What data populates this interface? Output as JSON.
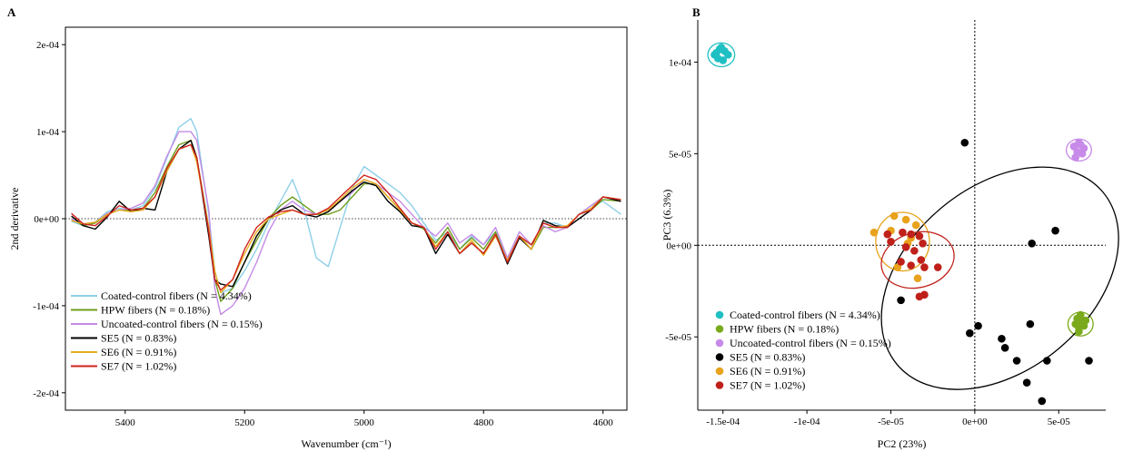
{
  "chart_data": [
    {
      "panel_label": "A",
      "type": "line",
      "xlabel": "Wavenumber (cm⁻¹)",
      "ylabel": "2nd derivative",
      "xlim": [
        5500,
        4560
      ],
      "ylim": [
        -0.00022,
        0.00022
      ],
      "x_reversed": true,
      "x_ticks": [
        5400,
        5200,
        5000,
        4800,
        4600
      ],
      "x_tick_labels": [
        "5400",
        "5200",
        "5000",
        "4800",
        "4600"
      ],
      "y_ticks": [
        -0.0002,
        -0.0001,
        0,
        0.0001,
        0.0002
      ],
      "y_tick_labels": [
        "-2e-04",
        "-1e-04",
        "0e+00",
        "1e-04",
        "2e-04"
      ],
      "zero_line": "dotted",
      "legend_position": "bottom-left",
      "x": [
        5490,
        5470,
        5450,
        5430,
        5410,
        5390,
        5370,
        5350,
        5330,
        5310,
        5290,
        5280,
        5260,
        5250,
        5240,
        5220,
        5200,
        5180,
        5160,
        5140,
        5120,
        5100,
        5080,
        5060,
        5040,
        5020,
        5000,
        4980,
        4960,
        4940,
        4920,
        4900,
        4880,
        4860,
        4840,
        4820,
        4800,
        4780,
        4760,
        4740,
        4720,
        4700,
        4680,
        4660,
        4640,
        4620,
        4600,
        4570
      ],
      "series": [
        {
          "name": "Coated-control fibers (N = 4.34%)",
          "color": "#8ecfe8",
          "values": [
            -3e-06,
            -8e-06,
            -4e-06,
            8e-06,
            1.2e-05,
            1e-05,
            1.5e-05,
            3.5e-05,
            7e-05,
            0.000105,
            0.000115,
            0.0001,
            5e-06,
            -6e-05,
            -8.5e-05,
            -8e-05,
            -6e-05,
            -3.5e-05,
            -5e-06,
            2e-05,
            4.5e-05,
            1e-05,
            -4.5e-05,
            -5.5e-05,
            -1e-05,
            3.5e-05,
            6e-05,
            5e-05,
            4e-05,
            3e-05,
            1.5e-05,
            -5e-06,
            -2.5e-05,
            -1.5e-05,
            -3.5e-05,
            -2e-05,
            -3e-05,
            -1.5e-05,
            -4.5e-05,
            -2e-05,
            -3e-05,
            -5e-06,
            -5e-06,
            -1e-05,
            5e-06,
            1.5e-05,
            2e-05,
            5e-06
          ]
        },
        {
          "name": "HPW fibers (N = 0.18%)",
          "color": "#6f9e1e",
          "values": [
            0,
            -8e-06,
            -5e-06,
            5e-06,
            1e-05,
            1e-05,
            1.2e-05,
            3e-05,
            6e-05,
            8.5e-05,
            9e-05,
            7e-05,
            -1e-05,
            -7e-05,
            -9.5e-05,
            -8e-05,
            -5e-05,
            -2.5e-05,
            0,
            1.5e-05,
            2.5e-05,
            1.5e-05,
            5e-06,
            5e-06,
            1e-05,
            2.5e-05,
            4e-05,
            4e-05,
            2.5e-05,
            1e-05,
            -5e-06,
            -1.2e-05,
            -2.8e-05,
            -1e-05,
            -3.5e-05,
            -2.2e-05,
            -3.5e-05,
            -1.5e-05,
            -5e-05,
            -2e-05,
            -3.5e-05,
            -1e-05,
            -1e-05,
            -1e-05,
            5e-06,
            1e-05,
            2.2e-05,
            2e-05
          ]
        },
        {
          "name": "Uncoated-control fibers (N = 0.15%)",
          "color": "#c58be6",
          "values": [
            0,
            -6e-06,
            -4e-06,
            6e-06,
            1e-05,
            1.2e-05,
            1.8e-05,
            3.8e-05,
            7.2e-05,
            0.0001,
            0.0001,
            9e-05,
            1e-05,
            -8e-05,
            -0.00011,
            -0.0001,
            -8e-05,
            -5e-05,
            -1.5e-05,
            1e-05,
            2e-05,
            1e-05,
            5e-06,
            1e-05,
            2e-05,
            3e-05,
            4.5e-05,
            4e-05,
            3e-05,
            2e-05,
            5e-06,
            -1e-05,
            -2e-05,
            -5e-06,
            -2.8e-05,
            -1.8e-05,
            -3e-05,
            -1e-05,
            -4.5e-05,
            -1.5e-05,
            -3e-05,
            -8e-06,
            -1.5e-05,
            -1e-05,
            5e-06,
            1.5e-05,
            2.5e-05,
            2e-05
          ]
        },
        {
          "name": "SE5 (N = 0.83%)",
          "color": "#000000",
          "values": [
            3e-06,
            -8e-06,
            -1.2e-05,
            2e-06,
            2e-05,
            8e-06,
            1.2e-05,
            1e-05,
            5.5e-05,
            8e-05,
            9e-05,
            7e-05,
            -2e-05,
            -7e-05,
            -7.5e-05,
            -7.8e-05,
            -5e-05,
            -2e-05,
            0,
            1e-05,
            1.5e-05,
            5e-06,
            2e-06,
            8e-06,
            2e-05,
            3.2e-05,
            4.2e-05,
            3.8e-05,
            2e-05,
            8e-06,
            -8e-06,
            -1e-05,
            -4e-05,
            -1.8e-05,
            -4e-05,
            -2.8e-05,
            -4e-05,
            -1.8e-05,
            -5.2e-05,
            -2.2e-05,
            -3.5e-05,
            -2e-06,
            -8e-06,
            -1e-05,
            0,
            1e-05,
            2.5e-05,
            2e-05
          ]
        },
        {
          "name": "SE6 (N = 0.91%)",
          "color": "#e6ad1e",
          "values": [
            -2e-06,
            -6e-06,
            -4e-06,
            5e-06,
            1e-05,
            8e-06,
            1e-05,
            2.5e-05,
            5.5e-05,
            8e-05,
            8.5e-05,
            6.5e-05,
            -1e-05,
            -6e-05,
            -8.5e-05,
            -7e-05,
            -4e-05,
            -1.5e-05,
            0,
            5e-06,
            1e-05,
            5e-06,
            5e-06,
            1e-05,
            2.2e-05,
            3.5e-05,
            4.5e-05,
            4e-05,
            2.5e-05,
            1e-05,
            -5e-06,
            -1e-05,
            -3.2e-05,
            -1.5e-05,
            -4e-05,
            -2.5e-05,
            -4.2e-05,
            -2e-05,
            -4.8e-05,
            -2e-05,
            -3.5e-05,
            -5e-06,
            -1e-05,
            -8e-06,
            5e-06,
            1.2e-05,
            2.5e-05,
            2.2e-05
          ]
        },
        {
          "name": "SE7 (N = 1.02%)",
          "color": "#d0231e",
          "values": [
            6e-06,
            -6e-06,
            -8e-06,
            3e-06,
            1.5e-05,
            1e-05,
            1.2e-05,
            2.5e-05,
            5.8e-05,
            8e-05,
            8.5e-05,
            7e-05,
            -1.5e-05,
            -7e-05,
            -8.2e-05,
            -7e-05,
            -3.5e-05,
            -1e-05,
            2e-06,
            8e-06,
            1e-05,
            5e-06,
            5e-06,
            1.2e-05,
            2.5e-05,
            3.8e-05,
            5e-05,
            4.5e-05,
            3e-05,
            1.2e-05,
            -5e-06,
            -1e-05,
            -3.5e-05,
            -1.5e-05,
            -4e-05,
            -2.8e-05,
            -4e-05,
            -1.8e-05,
            -5e-05,
            -2e-05,
            -3e-05,
            -5e-06,
            -1e-05,
            -1e-05,
            5e-06,
            1e-05,
            2.5e-05,
            2.2e-05
          ]
        }
      ]
    },
    {
      "panel_label": "B",
      "type": "scatter",
      "xlabel": "PC2 (23%)",
      "ylabel": "PC3 (6.3%)",
      "xlim": [
        -0.000165,
        7.8e-05
      ],
      "ylim": [
        -9e-05,
        0.000123
      ],
      "x_ticks": [
        -0.00015,
        -0.0001,
        -5e-05,
        0,
        5e-05
      ],
      "x_tick_labels": [
        "-1.5e-04",
        "-1e-04",
        "-5e-05",
        "0e+00",
        "5e-05"
      ],
      "y_ticks": [
        -5e-05,
        0,
        5e-05,
        0.0001
      ],
      "y_tick_labels": [
        "-5e-05",
        "0e+00",
        "5e-05",
        "1e-04"
      ],
      "zero_lines": "dashed",
      "legend_position": "bottom-left",
      "series": [
        {
          "name": "Coated-control fibers (N = 4.34%)",
          "color": "#1fbfc3",
          "x": [
            -0.000155,
            -0.000152,
            -0.000149,
            -0.000153,
            -0.00015,
            -0.000147,
            -0.000154,
            -0.000151
          ],
          "y": [
            0.000104,
            0.000107,
            0.000106,
            0.000102,
            0.000101,
            0.000104,
            0.000105,
            0.000108
          ],
          "ellipse": {
            "cx": -0.000151,
            "cy": 0.000104,
            "rx": 8e-06,
            "ry": 6.5e-06,
            "angle": 0
          }
        },
        {
          "name": "HPW fibers (N = 0.18%)",
          "color": "#7aaa1c",
          "x": [
            6.1e-05,
            6.4e-05,
            6.2e-05,
            6.5e-05,
            6e-05,
            6.3e-05,
            6.6e-05,
            6.2e-05
          ],
          "y": [
            -4e-05,
            -4.2e-05,
            -4.5e-05,
            -4.4e-05,
            -4.3e-05,
            -3.8e-05,
            -4.1e-05,
            -4.7e-05
          ],
          "ellipse": {
            "cx": 6.3e-05,
            "cy": -4.3e-05,
            "rx": 7.5e-06,
            "ry": 6.5e-06,
            "angle": 0
          }
        },
        {
          "name": "Uncoated-control fibers (N = 0.15%)",
          "color": "#c78ae8",
          "x": [
            5.9e-05,
            6.2e-05,
            6.5e-05,
            6.1e-05,
            6.4e-05,
            6e-05,
            6.3e-05
          ],
          "y": [
            5.4e-05,
            5.6e-05,
            5.3e-05,
            5.1e-05,
            5e-05,
            4.8e-05,
            5.5e-05
          ],
          "ellipse": {
            "cx": 6.2e-05,
            "cy": 5.2e-05,
            "rx": 7.5e-06,
            "ry": 6e-06,
            "angle": 0
          }
        },
        {
          "name": "SE5 (N = 0.83%)",
          "color": "#000000",
          "x": [
            -6e-06,
            4.8e-05,
            3.4e-05,
            -4.4e-05,
            -3e-06,
            2e-06,
            3.3e-05,
            1.6e-05,
            2.5e-05,
            4.3e-05,
            1.8e-05,
            3.1e-05,
            6.8e-05,
            4e-05
          ],
          "y": [
            5.6e-05,
            8e-06,
            1e-06,
            -3e-05,
            -4.8e-05,
            -4.4e-05,
            -4.3e-05,
            -5.1e-05,
            -6.3e-05,
            -6.3e-05,
            -5.6e-05,
            -7.5e-05,
            -6.3e-05,
            -8.5e-05
          ],
          "ellipse": {
            "cx": 1.5e-05,
            "cy": -1.8e-05,
            "rx": 8e-05,
            "ry": 5e-05,
            "angle": -40
          }
        },
        {
          "name": "SE6 (N = 0.91%)",
          "color": "#e8a21c",
          "x": [
            -4.8e-05,
            -4.1e-05,
            -5e-05,
            -3.5e-05,
            -3.8e-05,
            -4e-05,
            -4.6e-05,
            -3.4e-05,
            -6e-05
          ],
          "y": [
            1.6e-05,
            1.4e-05,
            8e-06,
            1.1e-05,
            4e-06,
            1e-06,
            -1.2e-05,
            -1.8e-05,
            7e-06
          ],
          "ellipse": {
            "cx": -4.3e-05,
            "cy": 2e-06,
            "rx": 1.6e-05,
            "ry": 1.6e-05,
            "angle": 0
          }
        },
        {
          "name": "SE7 (N = 1.02%)",
          "color": "#c0201a",
          "x": [
            -5.2e-05,
            -4.3e-05,
            -3.8e-05,
            -3.3e-05,
            -3.1e-05,
            -4.1e-05,
            -3.6e-05,
            -3.2e-05,
            -3e-05,
            -4.4e-05,
            -3.8e-05,
            -2.2e-05,
            -3e-05,
            -3.3e-05,
            -5e-05
          ],
          "y": [
            6e-06,
            7e-06,
            6e-06,
            5e-06,
            1e-06,
            -1e-06,
            -3e-06,
            -8e-06,
            -1.2e-05,
            -9e-06,
            -1.1e-05,
            -1.2e-05,
            -2.7e-05,
            -2.8e-05,
            2e-06
          ],
          "ellipse": {
            "cx": -3.4e-05,
            "cy": -8e-06,
            "rx": 2.2e-05,
            "ry": 1.5e-05,
            "angle": -15
          }
        }
      ]
    }
  ]
}
